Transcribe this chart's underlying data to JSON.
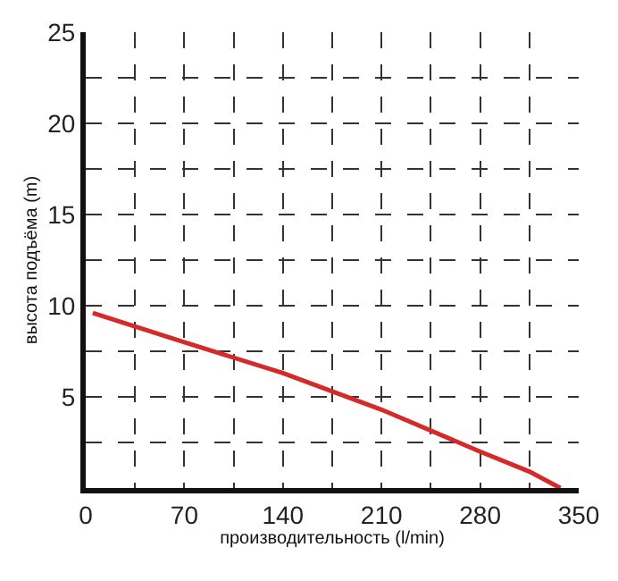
{
  "chart_data": {
    "type": "line",
    "xlabel": "производительность (l/min)",
    "ylabel": "высота подъёма (m)",
    "x": [
      5,
      70,
      140,
      210,
      280,
      315,
      337
    ],
    "series": [
      {
        "color": "#d42a2a",
        "values": [
          9.6,
          8.0,
          6.3,
          4.3,
          2.0,
          0.9,
          0
        ]
      }
    ],
    "xlim": [
      0,
      350
    ],
    "ylim": [
      0,
      25
    ],
    "xticks": [
      0,
      {
        "value": 35,
        "label": null
      },
      70,
      {
        "value": 105,
        "label": null
      },
      140,
      {
        "value": 175,
        "label": null
      },
      210,
      {
        "value": 245,
        "label": null
      },
      280,
      {
        "value": 315,
        "label": null
      },
      350
    ],
    "yticks": [
      {
        "value": 2.5,
        "label": null
      },
      5,
      {
        "value": 7.5,
        "label": null
      },
      10,
      {
        "value": 12.5,
        "label": null
      },
      15,
      {
        "value": 17.5,
        "label": null
      },
      20,
      {
        "value": 22.5,
        "label": null
      },
      25
    ],
    "grid": true,
    "legend": false,
    "marker": "none",
    "line_style": "solid"
  }
}
